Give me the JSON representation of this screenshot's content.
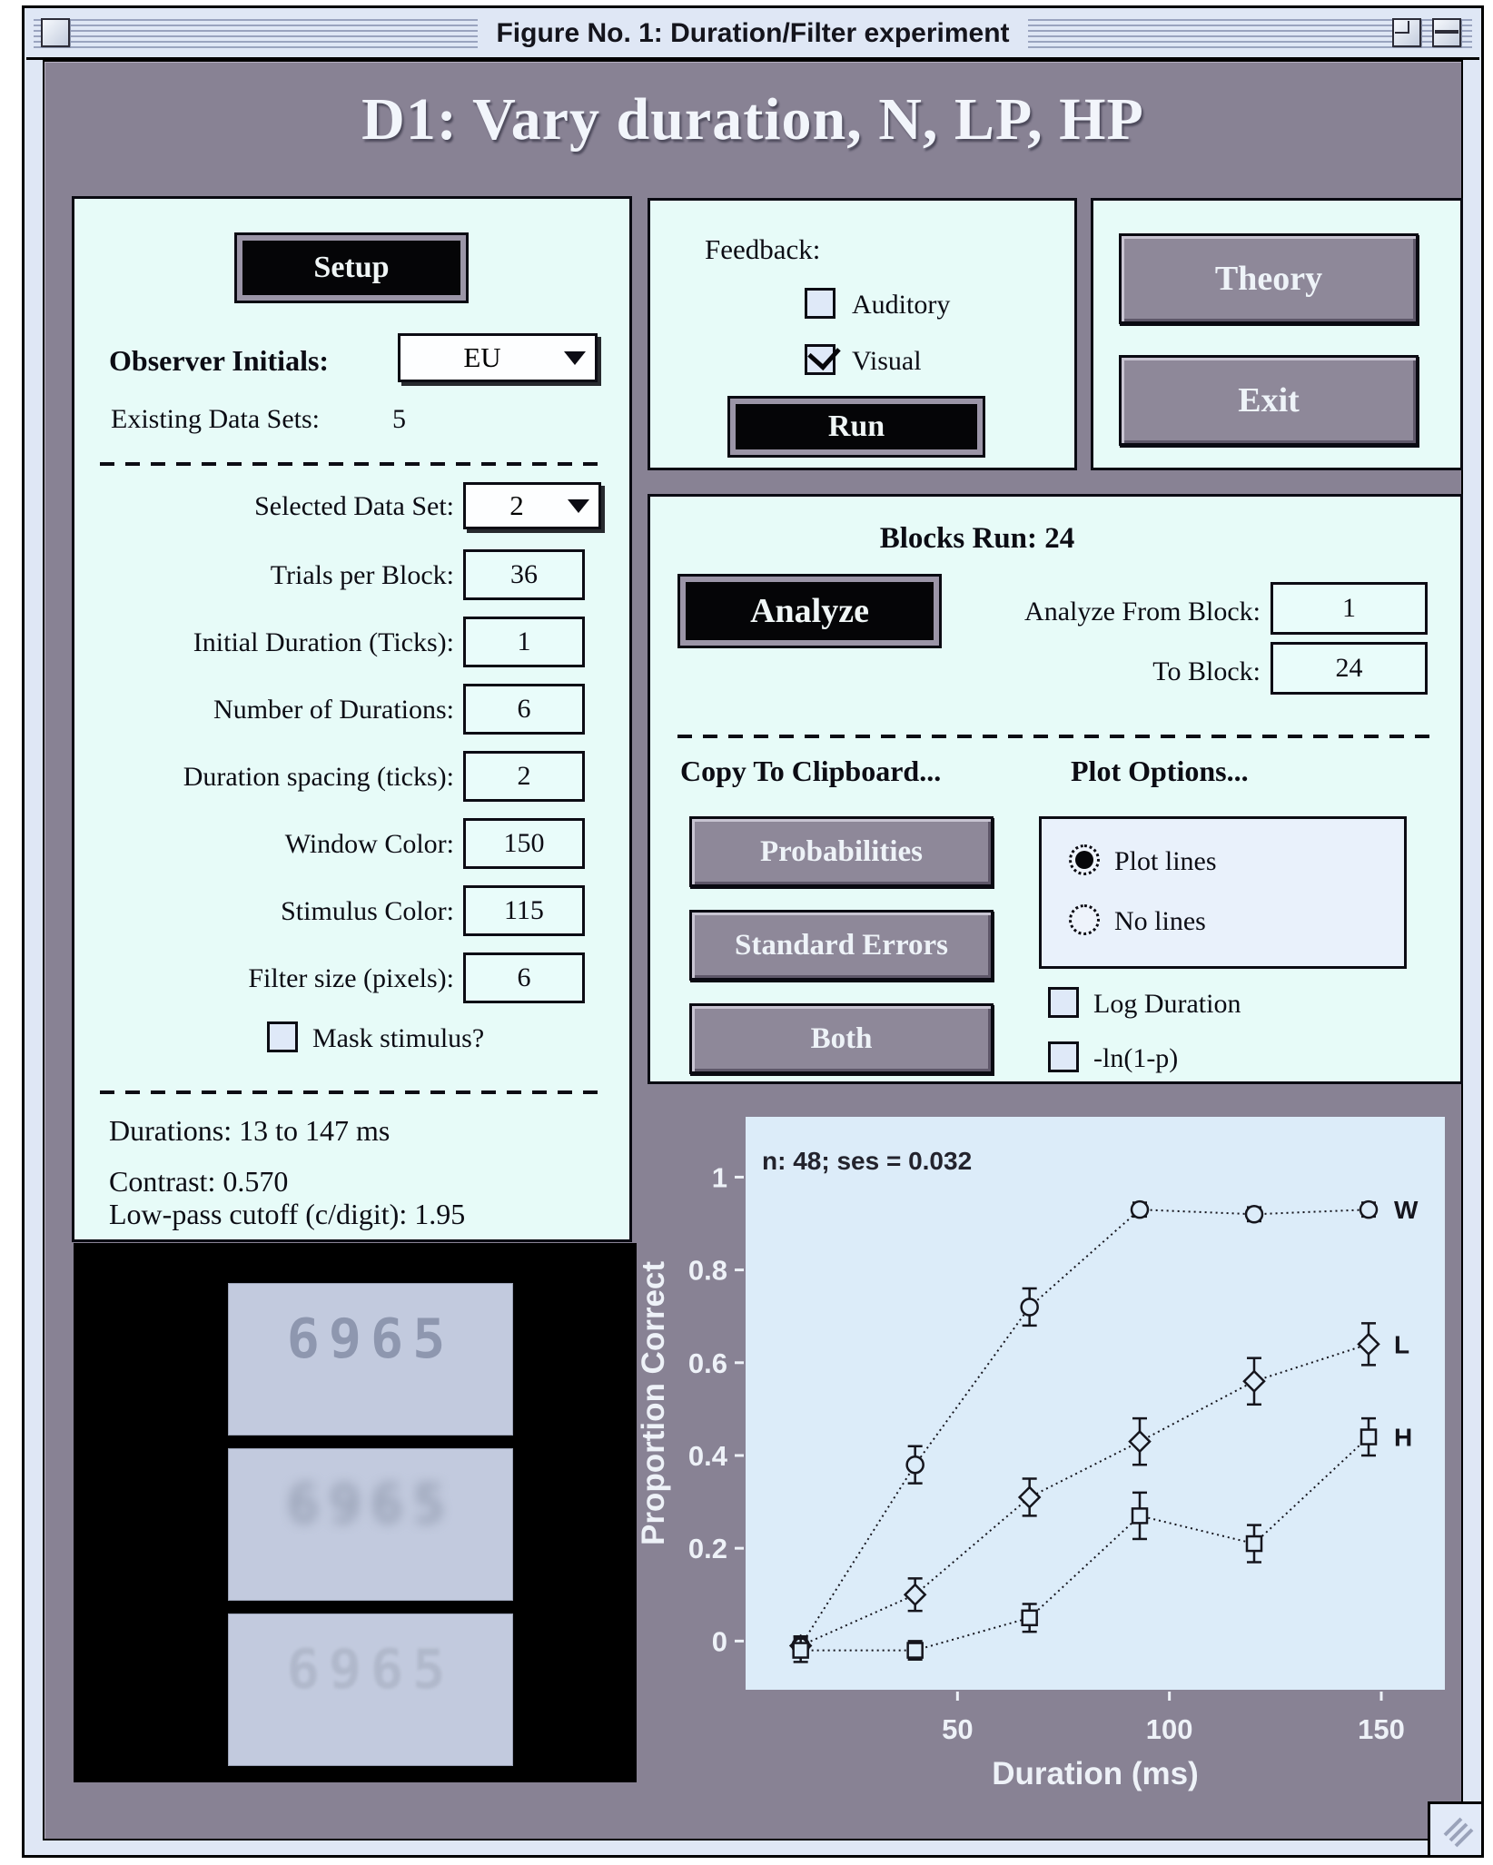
{
  "window": {
    "title": "Figure No. 1: Duration/Filter experiment"
  },
  "heading": "D1: Vary duration, N, LP, HP",
  "colors": {
    "window_bg": "#888294",
    "panel_bg": "#e7fbf8",
    "plot_bg": "#dcecf9",
    "titlebar": "#dfe7f5",
    "button_black": "#050507",
    "button_gray": "#8e8899"
  },
  "setup": {
    "setup_button": "Setup",
    "observer_label": "Observer Initials:",
    "observer_value": "EU",
    "existing_label": "Existing Data Sets:",
    "existing_value": "5",
    "selected_label": "Selected Data Set:",
    "selected_value": "2",
    "fields": [
      {
        "label": "Trials per Block:",
        "value": "36"
      },
      {
        "label": "Initial Duration (Ticks):",
        "value": "1"
      },
      {
        "label": "Number of Durations:",
        "value": "6"
      },
      {
        "label": "Duration spacing (ticks):",
        "value": "2"
      },
      {
        "label": "Window Color:",
        "value": "150"
      },
      {
        "label": "Stimulus Color:",
        "value": "115"
      },
      {
        "label": "Filter size (pixels):",
        "value": "6"
      }
    ],
    "mask_label": "Mask stimulus?",
    "mask_checked": false,
    "info": [
      "Durations: 13 to 147 ms",
      "Contrast: 0.570",
      "Low-pass cutoff (c/digit): 1.95"
    ]
  },
  "feedback": {
    "label": "Feedback:",
    "auditory_label": "Auditory",
    "auditory_checked": false,
    "visual_label": "Visual",
    "visual_checked": true,
    "run_button": "Run"
  },
  "nav": {
    "theory_button": "Theory",
    "exit_button": "Exit"
  },
  "analysis": {
    "blocks_run_label": "Blocks Run:",
    "blocks_run_value": "24",
    "analyze_button": "Analyze",
    "from_label": "Analyze From Block:",
    "from_value": "1",
    "to_label": "To Block:",
    "to_value": "24",
    "copy_label": "Copy To Clipboard...",
    "plot_options_label": "Plot Options...",
    "copy_buttons": [
      "Probabilities",
      "Standard Errors",
      "Both"
    ],
    "radio_plot_lines": "Plot lines",
    "plot_lines_selected": true,
    "radio_no_lines": "No lines",
    "no_lines_selected": false,
    "check_log_duration": "Log Duration",
    "log_duration_checked": false,
    "check_lnp": "-ln(1-p)",
    "lnp_checked": false
  },
  "stimulus_preview": {
    "digits": [
      "6965",
      "6965",
      "6965"
    ]
  },
  "chart_data": {
    "type": "line",
    "annotation": "n: 48; ses = 0.032",
    "xlabel": "Duration (ms)",
    "ylabel": "Proportion Correct",
    "plot_bg": "#dcecf9",
    "grid": false,
    "xlim": [
      0,
      165
    ],
    "ylim": [
      -0.105,
      1.13
    ],
    "xticks": [
      50,
      100,
      150
    ],
    "yticks": [
      0,
      0.2,
      0.4,
      0.6,
      0.8,
      1
    ],
    "x": [
      13,
      40,
      67,
      93,
      120,
      147
    ],
    "series": [
      {
        "name": "W",
        "marker": "circle",
        "values": [
          -0.01,
          0.38,
          0.72,
          0.93,
          0.92,
          0.93
        ],
        "errors": [
          0.02,
          0.04,
          0.04,
          0.015,
          0.015,
          0.015
        ]
      },
      {
        "name": "L",
        "marker": "diamond",
        "values": [
          -0.01,
          0.1,
          0.31,
          0.43,
          0.56,
          0.64
        ],
        "errors": [
          0.02,
          0.035,
          0.04,
          0.05,
          0.05,
          0.045
        ]
      },
      {
        "name": "H",
        "marker": "square",
        "values": [
          -0.02,
          -0.02,
          0.05,
          0.27,
          0.21,
          0.44
        ],
        "errors": [
          0.025,
          0.02,
          0.03,
          0.05,
          0.04,
          0.04
        ]
      }
    ]
  }
}
